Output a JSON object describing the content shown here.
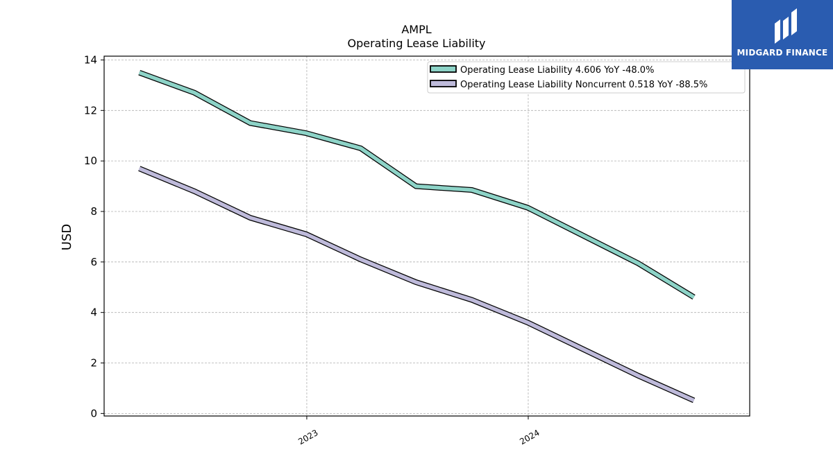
{
  "chart_data": {
    "type": "line",
    "title": "AMPL",
    "subtitle": "Operating Lease Liability",
    "xlabel": "",
    "ylabel": "USD",
    "x_tick_labels": [
      "2023",
      "2024"
    ],
    "y_ticks": [
      0,
      2,
      4,
      6,
      8,
      10,
      12,
      14
    ],
    "ylim": [
      -0.1,
      14.15
    ],
    "xlim": [
      "2022-02-01",
      "2024-12-31"
    ],
    "grid": true,
    "legend_position": "top-right",
    "x": [
      "2022-03-31",
      "2022-06-30",
      "2022-09-30",
      "2022-12-31",
      "2023-03-31",
      "2023-06-30",
      "2023-09-30",
      "2023-12-31",
      "2024-06-30",
      "2024-09-30"
    ],
    "series": [
      {
        "name": "Operating Lease Liability",
        "legend_label": "Operating Lease Liability  4.606 YoY -48.0%",
        "color": "#8dd3c7",
        "values": [
          13.5,
          12.7,
          11.5,
          11.1,
          10.5,
          9.0,
          8.85,
          8.15,
          5.95,
          4.606
        ]
      },
      {
        "name": "Operating Lease Liability Noncurrent",
        "legend_label": "Operating Lease Liability Noncurrent  0.518 YoY -88.5%",
        "color": "#bebada",
        "values": [
          9.7,
          8.8,
          7.75,
          7.1,
          6.1,
          5.2,
          4.5,
          3.6,
          1.5,
          0.518
        ]
      }
    ]
  },
  "logo": {
    "text": "MIDGARD FINANCE",
    "bg_color": "#2a5cb0"
  }
}
